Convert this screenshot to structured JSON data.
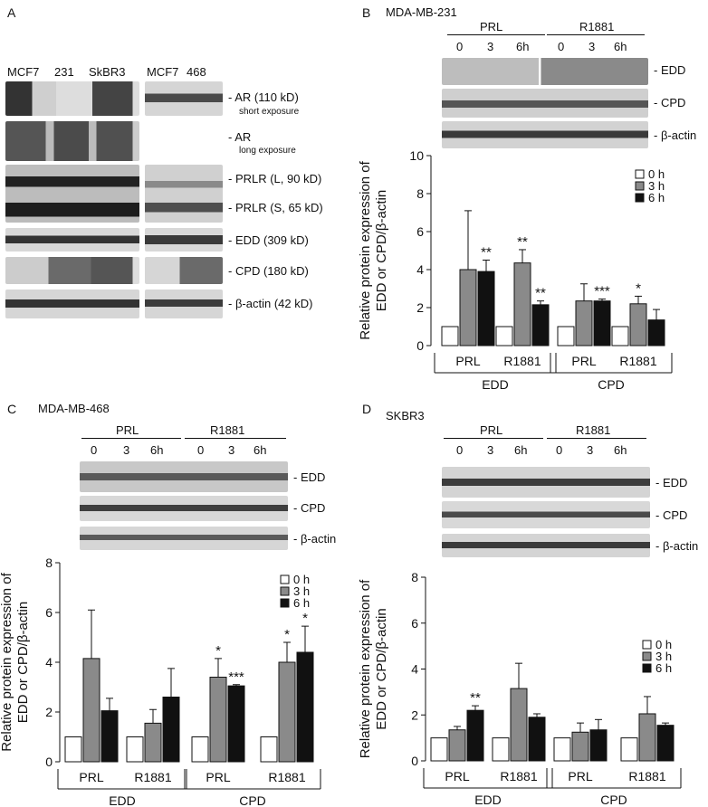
{
  "panel_a": {
    "letter": "A",
    "col_left": [
      "MCF7",
      "231",
      "SkBR3"
    ],
    "col_right": [
      "MCF7",
      "468"
    ],
    "bands": [
      {
        "label": "- AR (110 kD)",
        "sub": "short exposure"
      },
      {
        "label": "- AR",
        "sub": "long exposure"
      },
      {
        "label": "- PRLR (L, 90 kD)",
        "sub": ""
      },
      {
        "label": "- PRLR (S, 65 kD)",
        "sub": ""
      },
      {
        "label": "- EDD (309 kD)",
        "sub": ""
      },
      {
        "label": "- CPD (180 kD)",
        "sub": ""
      },
      {
        "label": "- β-actin (42 kD)",
        "sub": ""
      }
    ]
  },
  "blot_common": {
    "treatments": [
      "PRL",
      "R1881"
    ],
    "times": [
      "0",
      "3",
      "6h"
    ],
    "bands": [
      "- EDD",
      "- CPD",
      "- β-actin"
    ]
  },
  "panels": [
    {
      "letter": "B",
      "cell": "MDA-MB-231"
    },
    {
      "letter": "C",
      "cell": "MDA-MB-468"
    },
    {
      "letter": "D",
      "cell": "SKBR3"
    }
  ],
  "colors": {
    "h0": "#ffffff",
    "h3": "#8a8a8a",
    "h6": "#111111",
    "blot_dark": "#2a2a2a",
    "blot_bg": "#d9d9d9"
  },
  "chart_data": [
    {
      "panel": "B",
      "type": "bar",
      "ylabel": "Relative protein expression of EDD or CPD/β-actin",
      "ylim": [
        0,
        10
      ],
      "yticks": [
        0,
        2,
        4,
        6,
        8,
        10
      ],
      "categories": [
        "PRL",
        "R1881",
        "PRL",
        "R1881"
      ],
      "groups": [
        "EDD",
        "CPD"
      ],
      "legend_position": "top-right",
      "series": [
        {
          "name": "0 h",
          "values": [
            1,
            1,
            1,
            1
          ],
          "errors": [
            0,
            0,
            0,
            0
          ],
          "sig": [
            "",
            "",
            "",
            ""
          ]
        },
        {
          "name": "3 h",
          "values": [
            4.0,
            4.35,
            2.35,
            2.2
          ],
          "errors": [
            3.1,
            0.7,
            0.9,
            0.4
          ],
          "sig": [
            "",
            "**",
            "",
            "*"
          ]
        },
        {
          "name": "6 h",
          "values": [
            3.9,
            2.15,
            2.35,
            1.35
          ],
          "errors": [
            0.6,
            0.2,
            0.1,
            0.55
          ],
          "sig": [
            "**",
            "**",
            "***",
            ""
          ]
        }
      ]
    },
    {
      "panel": "C",
      "type": "bar",
      "ylabel": "Relative protein expression of EDD or CPD/β-actin",
      "ylim": [
        0,
        8
      ],
      "yticks": [
        0,
        2,
        4,
        6,
        8
      ],
      "categories": [
        "PRL",
        "R1881",
        "PRL",
        "R1881"
      ],
      "groups": [
        "EDD",
        "CPD"
      ],
      "legend_position": "top-right",
      "series": [
        {
          "name": "0 h",
          "values": [
            1,
            1,
            1,
            1
          ],
          "errors": [
            0,
            0,
            0,
            0
          ],
          "sig": [
            "",
            "",
            "",
            ""
          ]
        },
        {
          "name": "3 h",
          "values": [
            4.15,
            1.55,
            3.4,
            4.0
          ],
          "errors": [
            1.95,
            0.55,
            0.75,
            0.8
          ],
          "sig": [
            "",
            "",
            "*",
            "*"
          ]
        },
        {
          "name": "6 h",
          "values": [
            2.05,
            2.6,
            3.05,
            4.4
          ],
          "errors": [
            0.5,
            1.15,
            0.05,
            1.05
          ],
          "sig": [
            "",
            "",
            "***",
            "*"
          ]
        }
      ]
    },
    {
      "panel": "D",
      "type": "bar",
      "ylabel": "Relative protein expression of EDD or CPD/β-actin",
      "ylim": [
        0,
        8
      ],
      "yticks": [
        0,
        2,
        4,
        6,
        8
      ],
      "categories": [
        "PRL",
        "R1881",
        "PRL",
        "R1881"
      ],
      "groups": [
        "EDD",
        "CPD"
      ],
      "legend_position": "top-right",
      "series": [
        {
          "name": "0 h",
          "values": [
            1,
            1,
            1,
            1
          ],
          "errors": [
            0,
            0,
            0,
            0
          ],
          "sig": [
            "",
            "",
            "",
            ""
          ]
        },
        {
          "name": "3 h",
          "values": [
            1.35,
            3.15,
            1.25,
            2.05
          ],
          "errors": [
            0.15,
            1.1,
            0.4,
            0.75
          ],
          "sig": [
            "",
            "",
            "",
            ""
          ]
        },
        {
          "name": "6 h",
          "values": [
            2.2,
            1.9,
            1.35,
            1.55
          ],
          "errors": [
            0.2,
            0.15,
            0.45,
            0.1
          ],
          "sig": [
            "**",
            "",
            "",
            ""
          ]
        }
      ]
    }
  ]
}
